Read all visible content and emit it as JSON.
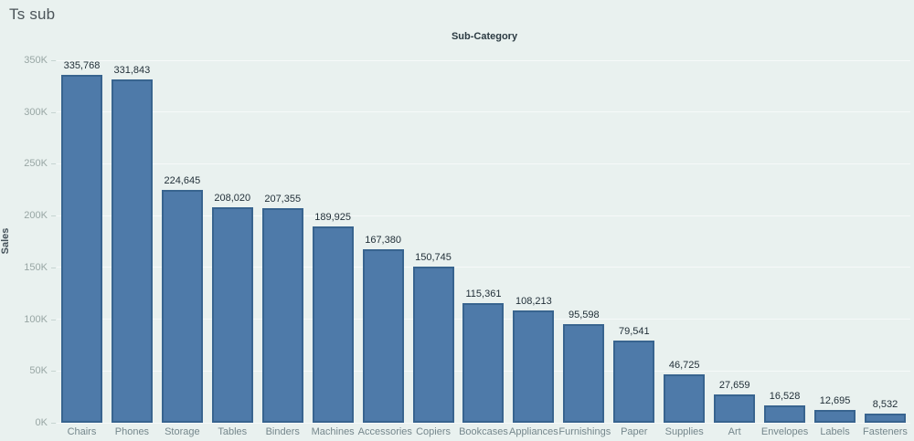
{
  "window": {
    "title": "Ts sub"
  },
  "colors": {
    "background": "#e9f1ef",
    "bar_fill": "#4e7aa9",
    "bar_border": "#38648f",
    "gridline": "rgba(255,255,255,0.6)"
  },
  "chart_data": {
    "type": "bar",
    "title": "Sub-Category",
    "xlabel": "",
    "ylabel": "Sales",
    "categories": [
      "Chairs",
      "Phones",
      "Storage",
      "Tables",
      "Binders",
      "Machines",
      "Accessories",
      "Copiers",
      "Bookcases",
      "Appliances",
      "Furnishings",
      "Paper",
      "Supplies",
      "Art",
      "Envelopes",
      "Labels",
      "Fasteners"
    ],
    "values": [
      335768,
      331843,
      224645,
      208020,
      207355,
      189925,
      167380,
      150745,
      115361,
      108213,
      95598,
      79541,
      46725,
      27659,
      16528,
      12695,
      8532
    ],
    "value_labels": [
      "335,768",
      "331,843",
      "224,645",
      "208,020",
      "207,355",
      "189,925",
      "167,380",
      "150,745",
      "115,361",
      "108,213",
      "95,598",
      "79,541",
      "46,725",
      "27,659",
      "16,528",
      "12,695",
      "8,532"
    ],
    "ylim": [
      0,
      350000
    ],
    "ytick_interval": 50000,
    "ytick_labels": [
      "0K",
      "50K",
      "100K",
      "150K",
      "200K",
      "250K",
      "300K",
      "350K"
    ],
    "grid": "horizontal-faint",
    "legend": "none",
    "sort": "descending"
  }
}
